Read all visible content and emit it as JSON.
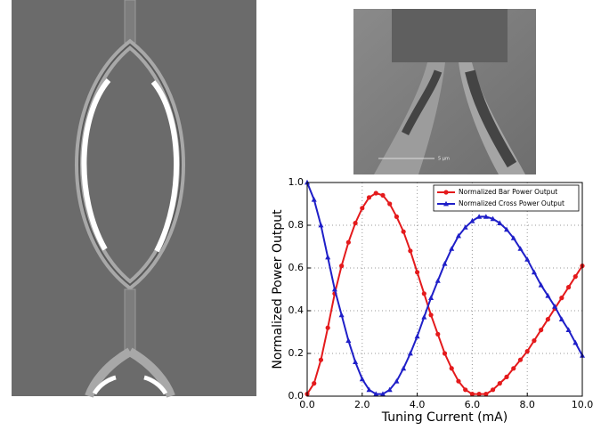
{
  "sem_scale_label": "5 µm",
  "chart_data": {
    "type": "line",
    "x_label": "Tuning Current (mA)",
    "y_label": "Normalized Power Output",
    "x": [
      0,
      0.25,
      0.5,
      0.75,
      1,
      1.25,
      1.5,
      1.75,
      2,
      2.25,
      2.5,
      2.75,
      3,
      3.25,
      3.5,
      3.75,
      4,
      4.25,
      4.5,
      4.75,
      5,
      5.25,
      5.5,
      5.75,
      6,
      6.25,
      6.5,
      6.75,
      7,
      7.25,
      7.5,
      7.75,
      8,
      8.25,
      8.5,
      8.75,
      9,
      9.25,
      9.5,
      9.75,
      10
    ],
    "series": [
      {
        "name": "Normalized Bar Power Output",
        "color": "#e41a1c",
        "marker": "circle",
        "values": [
          0.01,
          0.06,
          0.17,
          0.32,
          0.48,
          0.61,
          0.72,
          0.81,
          0.88,
          0.93,
          0.95,
          0.94,
          0.9,
          0.84,
          0.77,
          0.68,
          0.58,
          0.48,
          0.38,
          0.29,
          0.2,
          0.13,
          0.07,
          0.03,
          0.01,
          0.01,
          0.01,
          0.03,
          0.06,
          0.09,
          0.13,
          0.17,
          0.21,
          0.26,
          0.31,
          0.36,
          0.41,
          0.46,
          0.51,
          0.56,
          0.61
        ]
      },
      {
        "name": "Normalized Cross Power Output",
        "color": "#1f1fc8",
        "marker": "triangle",
        "values": [
          1.0,
          0.92,
          0.8,
          0.65,
          0.5,
          0.38,
          0.26,
          0.16,
          0.08,
          0.03,
          0.01,
          0.01,
          0.03,
          0.07,
          0.13,
          0.2,
          0.28,
          0.37,
          0.46,
          0.54,
          0.62,
          0.69,
          0.75,
          0.79,
          0.82,
          0.84,
          0.84,
          0.83,
          0.81,
          0.78,
          0.74,
          0.69,
          0.64,
          0.58,
          0.52,
          0.47,
          0.42,
          0.36,
          0.31,
          0.25,
          0.19
        ]
      }
    ],
    "xlim": [
      0,
      10
    ],
    "xticks": [
      {
        "value": 0,
        "label": "0.0"
      },
      {
        "value": 2,
        "label": "2.0"
      },
      {
        "value": 4,
        "label": "4.0"
      },
      {
        "value": 6,
        "label": "6.0"
      },
      {
        "value": 8,
        "label": "8.0"
      },
      {
        "value": 10,
        "label": "10.0"
      }
    ],
    "ylim": [
      0,
      1
    ],
    "yticks": [
      {
        "value": 0,
        "label": "0.0"
      },
      {
        "value": 0.2,
        "label": "0.2"
      },
      {
        "value": 0.4,
        "label": "0.4"
      },
      {
        "value": 0.6,
        "label": "0.6"
      },
      {
        "value": 0.8,
        "label": "0.8"
      },
      {
        "value": 1,
        "label": "1.0"
      }
    ],
    "grid": true,
    "legend": "upper right"
  }
}
